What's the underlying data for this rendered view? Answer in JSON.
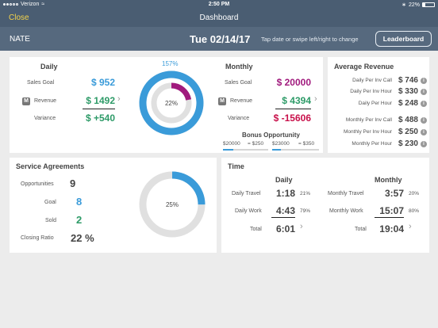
{
  "status_bar": {
    "carrier": "Verizon",
    "time": "2:50 PM",
    "battery": "22%"
  },
  "nav": {
    "close_label": "Close",
    "title": "Dashboard"
  },
  "subheader": {
    "user": "NATE",
    "date": "Tue 02/14/17",
    "hint": "Tap date or swipe left/right to change",
    "leaderboard_label": "Leaderboard"
  },
  "sales": {
    "daily": {
      "title": "Daily",
      "goal_label": "Sales Goal",
      "goal": "$ 952",
      "revenue_label": "Revenue",
      "revenue": "$ 1492",
      "variance_label": "Variance",
      "variance": "$ +540"
    },
    "ring": {
      "outer_label": "157%",
      "outer_fraction": 1.0,
      "inner_label": "22%",
      "inner_fraction": 0.22
    },
    "monthly": {
      "title": "Monthly",
      "goal_label": "Sales Goal",
      "goal": "$ 20000",
      "revenue_label": "Revenue",
      "revenue": "$ 4394",
      "variance_label": "Variance",
      "variance": "$ -15606"
    },
    "m_icon": "M"
  },
  "bonus": {
    "title": "Bonus Opportunity",
    "left_threshold": "$20000",
    "left_amount": "= $250",
    "right_threshold": "$23000",
    "right_amount": "= $350"
  },
  "avg_revenue": {
    "title": "Average Revenue",
    "rows": [
      {
        "label": "Daily Per Inv Call",
        "value": "$ 746"
      },
      {
        "label": "Daily Per Inv Hour",
        "value": "$ 330"
      },
      {
        "label": "Daily Per Hour",
        "value": "$ 248"
      },
      {
        "label": "Monthly Per Inv Call",
        "value": "$ 488"
      },
      {
        "label": "Monthly Per Inv Hour",
        "value": "$ 250"
      },
      {
        "label": "Monthly Per Hour",
        "value": "$ 230"
      }
    ]
  },
  "service": {
    "title": "Service Agreements",
    "rows": [
      {
        "label": "Opportunities",
        "value": "9"
      },
      {
        "label": "Goal",
        "value": "8"
      },
      {
        "label": "Sold",
        "value": "2"
      },
      {
        "label": "Closing Ratio",
        "value": "22 %"
      }
    ],
    "ring": {
      "label": "25%",
      "fraction": 0.25
    }
  },
  "time": {
    "title": "Time",
    "daily_title": "Daily",
    "monthly_title": "Monthly",
    "daily": [
      {
        "label": "Daily Travel",
        "value": "1:18",
        "pct": "21%"
      },
      {
        "label": "Daily Work",
        "value": "4:43",
        "pct": "79%"
      },
      {
        "label": "Total",
        "value": "6:01"
      }
    ],
    "monthly": [
      {
        "label": "Monthly Travel",
        "value": "3:57",
        "pct": "20%"
      },
      {
        "label": "Monthly Work",
        "value": "15:07",
        "pct": "80%"
      },
      {
        "label": "Total",
        "value": "19:04"
      }
    ]
  },
  "colors": {
    "blue": "#3a9bd9",
    "green": "#2e9b68",
    "magenta": "#a01a7d",
    "crimson": "#c8104a",
    "nav": "#4a5d72",
    "yellow": "#f3d34a"
  },
  "icons": [
    "chevron-right-icon",
    "info-icon",
    "m-icon",
    "signal-dots-icon",
    "wifi-icon",
    "battery-icon"
  ]
}
